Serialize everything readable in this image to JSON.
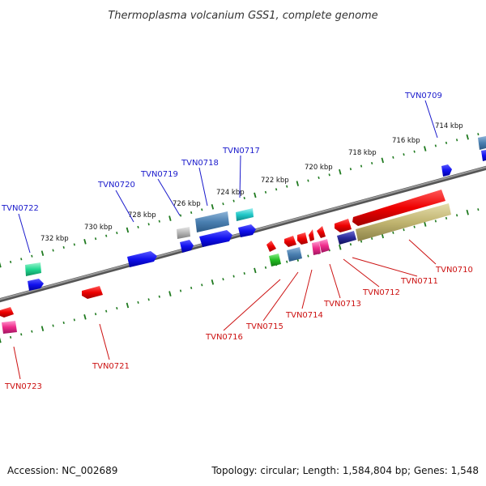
{
  "title": "Thermoplasma volcanium GSS1, complete genome",
  "footer": {
    "accession": "Accession: NC_002689",
    "summary": "Topology: circular; Length: 1,584,804 bp; Genes: 1,548"
  },
  "colors": {
    "top_label": "#1a1acc",
    "bottom_label": "#cc1111",
    "tick": "#1f7a1f",
    "backbone": "#777777"
  },
  "scale_labels": [
    "714 kbp",
    "716 kbp",
    "718 kbp",
    "720 kbp",
    "722 kbp",
    "724 kbp",
    "726 kbp",
    "728 kbp",
    "730 kbp",
    "732 kbp"
  ],
  "top_gene_labels": [
    "TVN0709",
    "TVN0717",
    "TVN0718",
    "TVN0719",
    "TVN0720",
    "TVN0722"
  ],
  "bottom_gene_labels": [
    "TVN0710",
    "TVN0711",
    "TVN0712",
    "TVN0713",
    "TVN0714",
    "TVN0715",
    "TVN0716",
    "TVN0721",
    "TVN0723"
  ]
}
